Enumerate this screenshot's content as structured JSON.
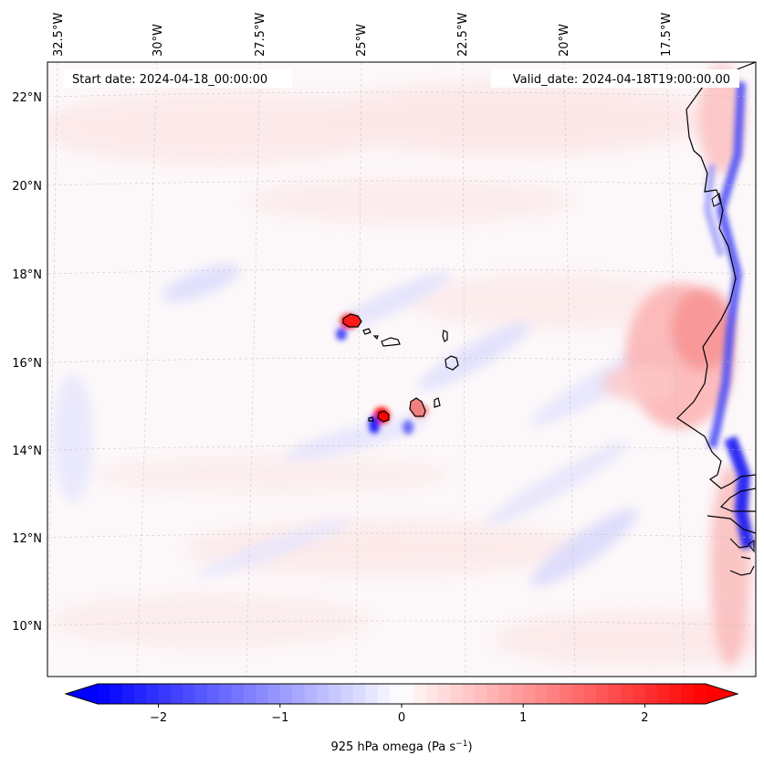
{
  "map": {
    "projection": "lambert-conformal",
    "header": {
      "start_date": "Start date: 2024-04-18_00:00:00",
      "valid_date": "Valid_date: 2024-04-18T19:00:00.00"
    },
    "lon_ticks": [
      "32.5°W",
      "30°W",
      "27.5°W",
      "25°W",
      "22.5°W",
      "20°W",
      "17.5°W"
    ],
    "lat_ticks": [
      "22°N",
      "20°N",
      "18°N",
      "16°N",
      "14°N",
      "12°N",
      "10°N"
    ],
    "gridlines": true,
    "gridline_style": "dashed",
    "features": [
      "west-african-coastline",
      "cape-verde-islands"
    ]
  },
  "colorbar": {
    "label": "925 hPa omega (Pa s",
    "label_exponent": "−1",
    "label_close": ")",
    "ticks": [
      "−2",
      "−1",
      "0",
      "1",
      "2"
    ],
    "tick_values": [
      -2,
      -1,
      0,
      1,
      2
    ],
    "range": [
      -2.5,
      2.5
    ],
    "extend": "both",
    "colormap": "bwr",
    "colors": {
      "negative": "#0000ff",
      "zero": "#ffffff",
      "positive": "#ff0000"
    }
  }
}
